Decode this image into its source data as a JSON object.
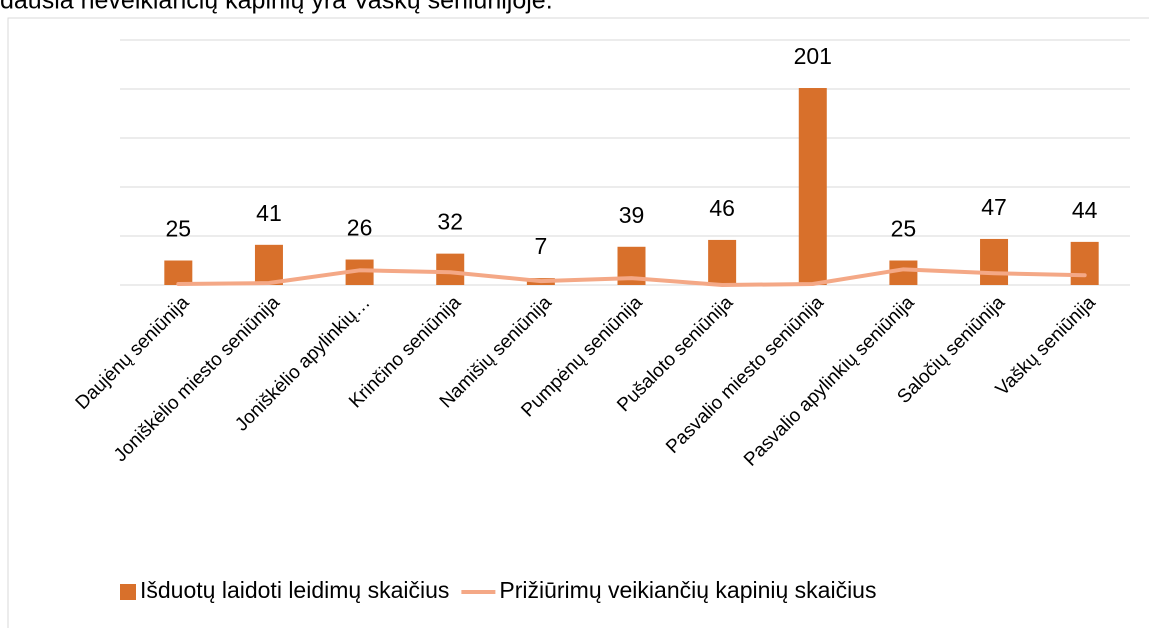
{
  "chart_data": {
    "type": "bar",
    "title": "dausia neveikiančių kapinių yra Vaškų seniūnijoje.",
    "categories": [
      "Daujėnų seniūnija",
      "Joniškėlio miesto seniūnija",
      "Joniškėlio apylinkių…",
      "Krinčino seniūnija",
      "Namišių seniūnija",
      "Pumpėnų seniūnija",
      "Pušaloto seniūnija",
      "Pasvalio miesto seniūnija",
      "Pasvalio apylinkių seniūnija",
      "Saločių seniūnija",
      "Vaškų seniūnija"
    ],
    "series": [
      {
        "name": "Išduotų laidoti leidimų skaičius",
        "type": "bar",
        "color": "#d8702b",
        "values": [
          25,
          41,
          26,
          32,
          7,
          39,
          46,
          201,
          25,
          47,
          44
        ]
      },
      {
        "name": "Prižiūrimų veikiančių  kapinių skaičius",
        "type": "line",
        "color": "#f4a886",
        "values": [
          1,
          2,
          15,
          13,
          4,
          7,
          0,
          1,
          16,
          12,
          10
        ]
      }
    ],
    "ylim": [
      0,
      250
    ],
    "yticks": [
      0,
      50,
      100,
      150,
      200,
      250
    ],
    "grid": true,
    "legend": "bottom"
  }
}
